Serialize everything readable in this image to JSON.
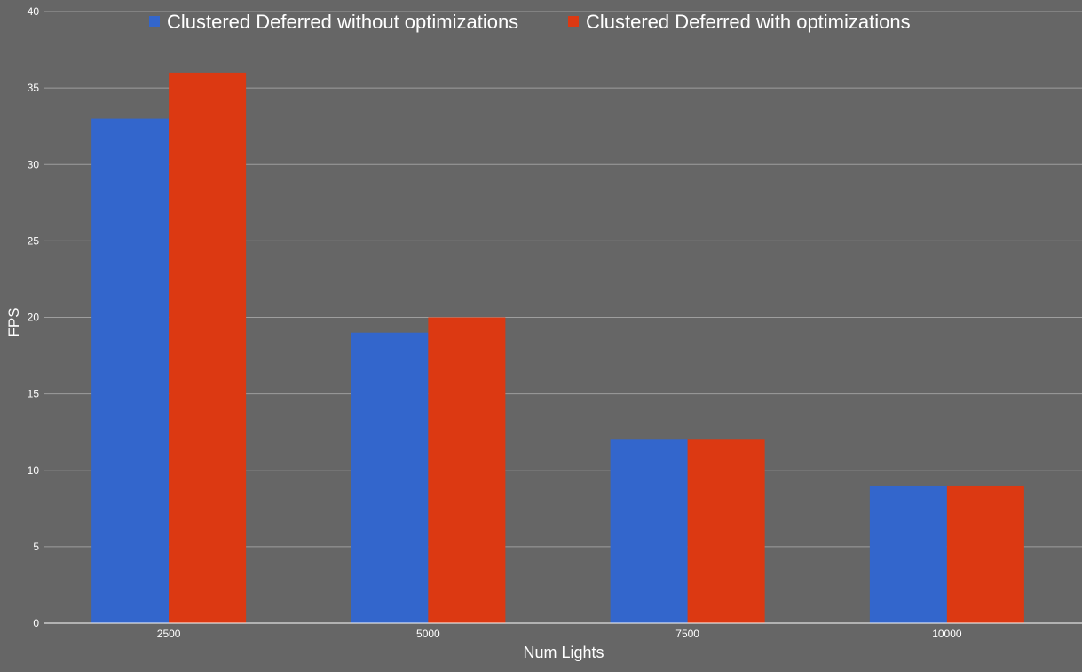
{
  "chart_data": {
    "type": "bar",
    "title": "",
    "xlabel": "Num Lights",
    "ylabel": "FPS",
    "categories": [
      "2500",
      "5000",
      "7500",
      "10000"
    ],
    "series": [
      {
        "name": "Clustered Deferred without optimizations",
        "color": "#3366cc",
        "values": [
          33,
          19,
          12,
          9
        ]
      },
      {
        "name": "Clustered Deferred with optimizations",
        "color": "#dc3912",
        "values": [
          36,
          20,
          12,
          9
        ]
      }
    ],
    "ylim": [
      0,
      40
    ],
    "yticks": [
      0,
      5,
      10,
      15,
      20,
      25,
      30,
      35,
      40
    ],
    "grid": true,
    "legend_position": "top",
    "background_color": "#666666",
    "gridline_color": "#9e9e9e",
    "text_color": "#ffffff"
  }
}
